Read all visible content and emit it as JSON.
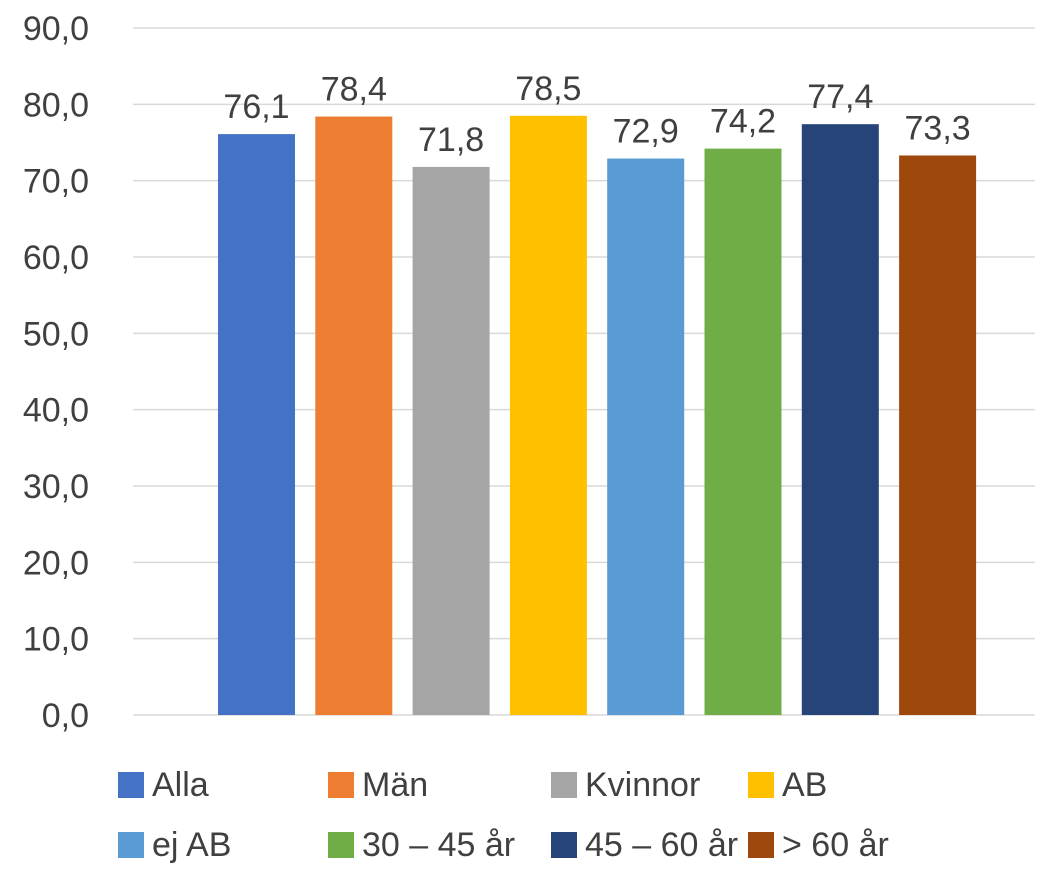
{
  "chart_data": {
    "type": "bar",
    "categories": [
      "Alla",
      "Män",
      "Kvinnor",
      "AB",
      "ej AB",
      "30 – 45 år",
      "45 – 60 år",
      "> 60 år"
    ],
    "values": [
      76.1,
      78.4,
      71.8,
      78.5,
      72.9,
      74.2,
      77.4,
      73.3
    ],
    "value_labels": [
      "76,1",
      "78,4",
      "71,8",
      "78,5",
      "72,9",
      "74,2",
      "77,4",
      "73,3"
    ],
    "colors": [
      "#4472C4",
      "#ED7D31",
      "#A5A5A5",
      "#FFC000",
      "#5B9BD5",
      "#70AD47",
      "#264478",
      "#9E480E"
    ],
    "ylim": [
      0,
      90
    ],
    "yticks": [
      0,
      10,
      20,
      30,
      40,
      50,
      60,
      70,
      80,
      90
    ],
    "ytick_labels": [
      "0,0",
      "10,0",
      "20,0",
      "30,0",
      "40,0",
      "50,0",
      "60,0",
      "70,0",
      "80,0",
      "90,0"
    ],
    "grid": true,
    "legend_position": "bottom",
    "title": "",
    "xlabel": "",
    "ylabel": ""
  }
}
